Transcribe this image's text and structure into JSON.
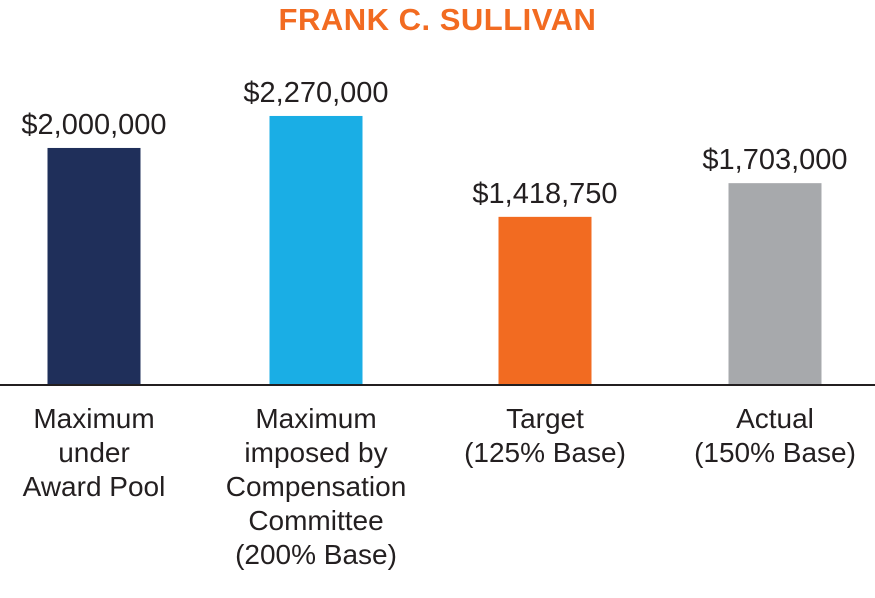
{
  "chart_data": {
    "type": "bar",
    "title": "FRANK C. SULLIVAN",
    "categories": [
      [
        "Maximum",
        "under",
        "Award Pool"
      ],
      [
        "Maximum",
        "imposed by",
        "Compensation",
        "Committee",
        "(200% Base)"
      ],
      [
        "Target",
        "(125% Base)"
      ],
      [
        "Actual",
        "(150% Base)"
      ]
    ],
    "values": [
      2000000,
      2270000,
      1418750,
      1703000
    ],
    "data_labels": [
      "$2,000,000",
      "$2,270,000",
      "$1,418,750",
      "$1,703,000"
    ],
    "colors": [
      "#1f2f5a",
      "#1aaee5",
      "#f26b21",
      "#a7a9ac"
    ],
    "ylim": [
      0,
      2700000
    ],
    "grid": false,
    "legend": "none"
  }
}
